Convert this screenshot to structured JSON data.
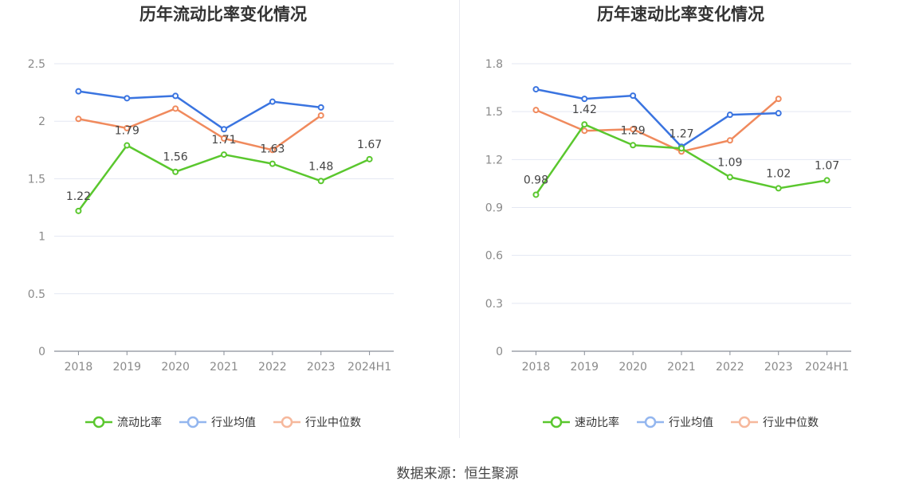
{
  "source_text": "数据来源：恒生聚源",
  "chart_data": [
    {
      "type": "line",
      "title": "历年流动比率变化情况",
      "categories": [
        "2018",
        "2019",
        "2020",
        "2021",
        "2022",
        "2023",
        "2024H1"
      ],
      "ylim": [
        0,
        2.5
      ],
      "yticks": [
        "0",
        "0.5",
        "1",
        "1.5",
        "2",
        "2.5"
      ],
      "grid": true,
      "legend_position": "bottom-center",
      "series": [
        {
          "name": "流动比率",
          "color": "#5ac72e",
          "values": [
            1.22,
            1.79,
            1.56,
            1.71,
            1.63,
            1.48,
            1.67
          ],
          "labels": [
            "1.22",
            "1.79",
            "1.56",
            "1.71",
            "1.63",
            "1.48",
            "1.67"
          ]
        },
        {
          "name": "行业均值",
          "color": "#3a74e0",
          "values": [
            2.26,
            2.2,
            2.22,
            1.93,
            2.17,
            2.12,
            null
          ]
        },
        {
          "name": "行业中位数",
          "color": "#f08a5d",
          "values": [
            2.02,
            1.94,
            2.11,
            1.85,
            1.75,
            2.05,
            null
          ]
        }
      ]
    },
    {
      "type": "line",
      "title": "历年速动比率变化情况",
      "categories": [
        "2018",
        "2019",
        "2020",
        "2021",
        "2022",
        "2023",
        "2024H1"
      ],
      "ylim": [
        0,
        1.8
      ],
      "yticks": [
        "0",
        "0.3",
        "0.6",
        "0.9",
        "1.2",
        "1.5",
        "1.8"
      ],
      "grid": true,
      "legend_position": "bottom-center",
      "series": [
        {
          "name": "速动比率",
          "color": "#5ac72e",
          "values": [
            0.98,
            1.42,
            1.29,
            1.27,
            1.09,
            1.02,
            1.07
          ],
          "labels": [
            "0.98",
            "1.42",
            "1.29",
            "1.27",
            "1.09",
            "1.02",
            "1.07"
          ]
        },
        {
          "name": "行业均值",
          "color": "#3a74e0",
          "values": [
            1.64,
            1.58,
            1.6,
            1.28,
            1.48,
            1.49,
            null
          ]
        },
        {
          "name": "行业中位数",
          "color": "#f08a5d",
          "values": [
            1.51,
            1.38,
            1.39,
            1.25,
            1.32,
            1.58,
            null
          ]
        }
      ]
    }
  ]
}
